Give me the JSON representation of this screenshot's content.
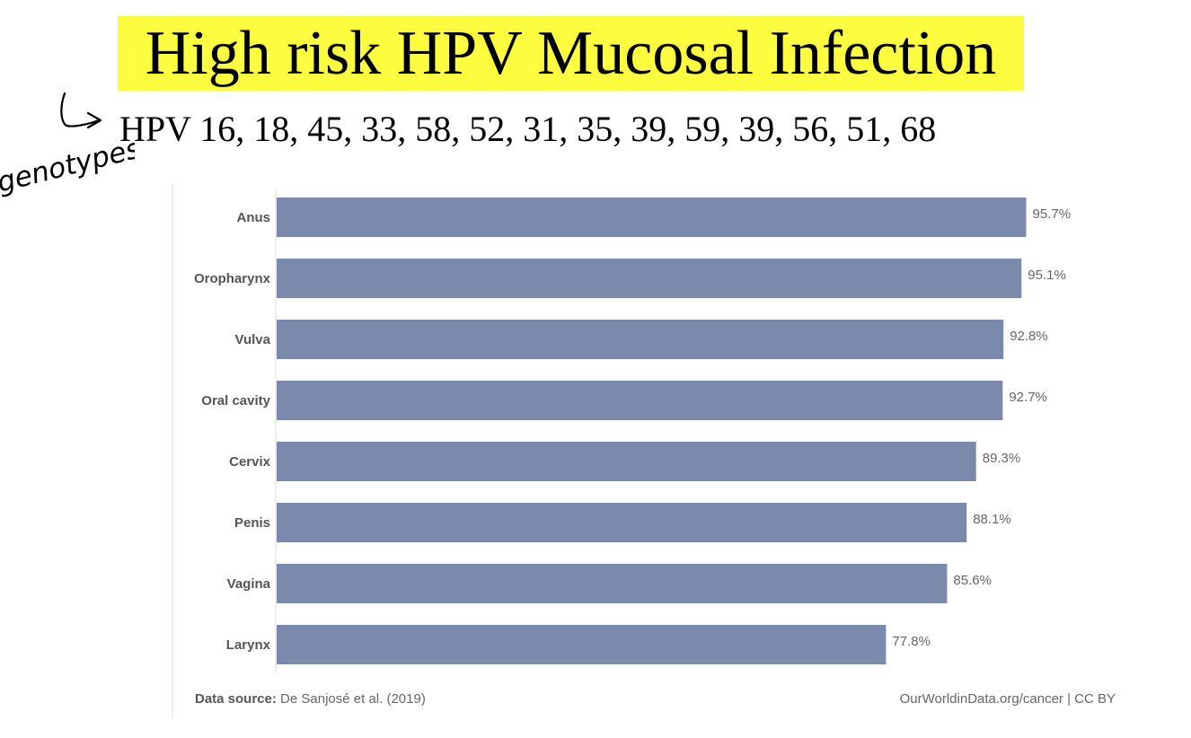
{
  "slide": {
    "title": "High risk HPV Mucosal Infection",
    "genotypes_line": "HPV 16, 18, 45, 33, 58, 52, 31, 35, 39, 59, 39, 56, 51, 68",
    "handwritten_note": "genotypes"
  },
  "footer": {
    "source_label": "Data source:",
    "source_text": "De Sanjosé et al. (2019)",
    "credit": "OurWorldinData.org/cancer | CC BY"
  },
  "colors": {
    "bar": "#7a89ac",
    "highlight": "#fdfd3f"
  },
  "chart_data": {
    "type": "bar",
    "orientation": "horizontal",
    "categories": [
      "Anus",
      "Oropharynx",
      "Vulva",
      "Oral cavity",
      "Cervix",
      "Penis",
      "Vagina",
      "Larynx"
    ],
    "values": [
      95.7,
      95.1,
      92.8,
      92.7,
      89.3,
      88.1,
      85.6,
      77.8
    ],
    "value_labels": [
      "95.7%",
      "95.1%",
      "92.8%",
      "92.7%",
      "89.3%",
      "88.1%",
      "85.6%",
      "77.8%"
    ],
    "xlim": [
      0,
      100
    ],
    "grid": false,
    "legend": "none"
  }
}
